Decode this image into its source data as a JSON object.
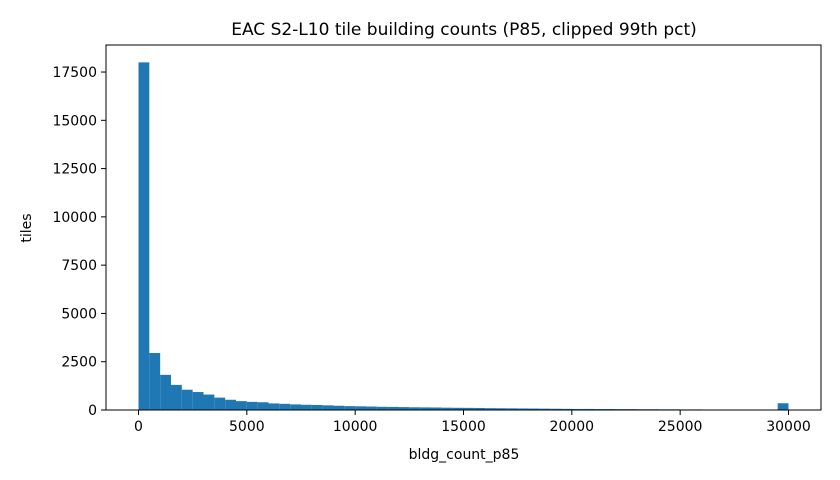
{
  "chart_data": {
    "type": "bar",
    "title": "EAC S2-L10 tile building counts (P85, clipped 99th pct)",
    "xlabel": "bldg_count_p85",
    "ylabel": "tiles",
    "xlim": [
      -1500,
      31500
    ],
    "ylim": [
      0,
      18900
    ],
    "xticks": [
      0,
      5000,
      10000,
      15000,
      20000,
      25000,
      30000
    ],
    "yticks": [
      0,
      2500,
      5000,
      7500,
      10000,
      12500,
      15000,
      17500
    ],
    "bin_start": 0,
    "bin_width": 500,
    "color": "#1f77b4",
    "grid": false,
    "values": [
      18000,
      2950,
      1820,
      1300,
      1050,
      930,
      800,
      640,
      530,
      460,
      420,
      400,
      340,
      320,
      290,
      270,
      260,
      240,
      220,
      200,
      190,
      180,
      165,
      160,
      150,
      140,
      135,
      130,
      120,
      115,
      110,
      105,
      95,
      90,
      85,
      80,
      75,
      70,
      65,
      60,
      55,
      55,
      50,
      50,
      45,
      45,
      40,
      40,
      35,
      35,
      30,
      30,
      25,
      25,
      25,
      25,
      20,
      20,
      20,
      350
    ]
  }
}
